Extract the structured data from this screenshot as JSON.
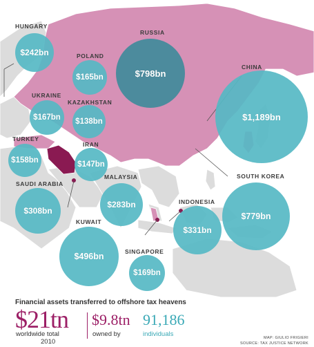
{
  "title": "Financial assets transferred to offshore tax heavens",
  "colors": {
    "highlight_region": "#d691b6",
    "highlight_strong": "#8a1a52",
    "bubble": "#56b8c4",
    "bubble_dark": "#468a9c",
    "land": "#dcdcdc",
    "accent": "#9c1f66",
    "teal_text": "#3aa9b6"
  },
  "countries": [
    {
      "name": "HUNGARY",
      "value": "$242bn"
    },
    {
      "name": "POLAND",
      "value": "$165bn"
    },
    {
      "name": "RUSSIA",
      "value": "$798bn"
    },
    {
      "name": "CHINA",
      "value": "$1,189bn"
    },
    {
      "name": "UKRAINE",
      "value": "$167bn"
    },
    {
      "name": "KAZAKHSTAN",
      "value": "$138bn"
    },
    {
      "name": "TURKEY",
      "value": "$158bn"
    },
    {
      "name": "IRAN",
      "value": "$147bn"
    },
    {
      "name": "SAUDI ARABIA",
      "value": "$308bn"
    },
    {
      "name": "MALAYSIA",
      "value": "$283bn"
    },
    {
      "name": "SOUTH KOREA",
      "value": "$779bn"
    },
    {
      "name": "INDONESIA",
      "value": "$331bn"
    },
    {
      "name": "KUWAIT",
      "value": "$496bn"
    },
    {
      "name": "SINGAPORE",
      "value": "$169bn"
    }
  ],
  "summary": {
    "total_value": "$21tn",
    "total_caption_line1": "worldwide total",
    "total_caption_line2": "2010",
    "owned_value": "$9.8tn",
    "owned_caption": "owned by",
    "individuals_value": "91,186",
    "individuals_caption": "individuals"
  },
  "credits": {
    "map": "MAP: GIULIO FRIGIERI",
    "source": "SOURCE: TAX JUSTICE NETWORK"
  }
}
